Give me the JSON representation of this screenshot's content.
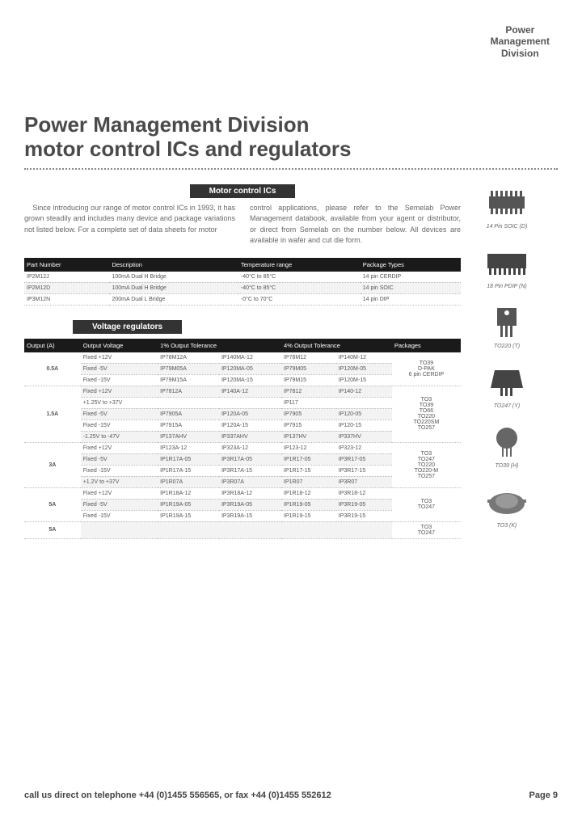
{
  "header": {
    "brand_line1": "Power",
    "brand_line2": "Management",
    "brand_line3": "Division"
  },
  "title_line1": "Power Management Division",
  "title_line2": "motor control ICs and regulators",
  "motor_section": {
    "heading": "Motor control ICs",
    "para_left": "Since introducing our range of motor control ICs in 1993, it has grown steadily and includes many device and package variations not listed below. For a complete set of data sheets for motor",
    "para_right": "control applications, please refer to the Semelab Power Management databook, available from your agent or distributor, or direct from Semelab on the number below. All devices are available in wafer and cut die form.",
    "columns": [
      "Part Number",
      "Description",
      "Temperature range",
      "Package Types"
    ],
    "rows": [
      [
        "IP2M12J",
        "100mA Dual H Bridge",
        "-40°C to 85°C",
        "14 pin CERDIP"
      ],
      [
        "IP2M12D",
        "100mA Dual H Bridge",
        "-40°C to 85°C",
        "14 pin SOIC"
      ],
      [
        "IP3M12N",
        "200mA Dual L Bridge",
        "-0°C to 70°C",
        "14 pin DIP"
      ]
    ]
  },
  "voltage_section": {
    "heading": "Voltage regulators",
    "columns": [
      "Output (A)",
      "Output Voltage",
      "1% Output Tolerance",
      "",
      "4% Output Tolerance",
      "",
      "Packages"
    ],
    "groups": [
      {
        "out": "0.5A",
        "pkg": "TO39\nD-PAK\n6 pin CERDIP",
        "rows": [
          [
            "Fixed +12V",
            "IP78M12A",
            "IP140MA-12",
            "IP78M12",
            "IP140M-12"
          ],
          [
            "Fixed -5V",
            "IP79M05A",
            "IP120MA-05",
            "IP79M05",
            "IP120M-05"
          ],
          [
            "Fixed -15V",
            "IP79M15A",
            "IP120MA-15",
            "IP79M15",
            "IP120M-15"
          ]
        ]
      },
      {
        "out": "1.5A",
        "pkg": "TO3\nTO39\nTO66\nTO220\nTO220SM\nTO257",
        "rows": [
          [
            "Fixed +12V",
            "IP7812A",
            "IP140A-12",
            "IP7812",
            "IP140-12"
          ],
          [
            "+1.25V to +37V",
            "",
            "",
            "IP117",
            ""
          ],
          [
            "Fixed -5V",
            "IP7905A",
            "IP120A-05",
            "IP7905",
            "IP120-05"
          ],
          [
            "Fixed -15V",
            "IP7915A",
            "IP120A-15",
            "IP7915",
            "IP120-15"
          ],
          [
            "-1.25V to -47V",
            "IP137AHV",
            "IP337AHV",
            "IP137HV",
            "IP337HV"
          ]
        ]
      },
      {
        "out": "3A",
        "pkg": "TO3\nTO247\nTO220\nTO220-M\nTO257",
        "rows": [
          [
            "Fixed +12V",
            "IP123A-12",
            "IP323A-12",
            "IP123-12",
            "IP323-12"
          ],
          [
            "Fixed -5V",
            "IP1R17A-05",
            "IP3R17A-05",
            "IP1R17-05",
            "IP3R17-05"
          ],
          [
            "Fixed -15V",
            "IP1R17A-15",
            "IP3R17A-15",
            "IP1R17-15",
            "IP3R17-15"
          ],
          [
            "+1.2V to +37V",
            "IP1R07A",
            "IP3R07A",
            "IP1R07",
            "IP3R07"
          ]
        ]
      },
      {
        "out": "5A",
        "pkg": "TO3\nTO247",
        "rows": [
          [
            "Fixed +12V",
            "IP1R18A-12",
            "IP3R18A-12",
            "IP1R18-12",
            "IP3R18-12"
          ],
          [
            "Fixed -5V",
            "IP1R19A-05",
            "IP3R19A-05",
            "IP1R19-05",
            "IP3R19-05"
          ],
          [
            "Fixed -15V",
            "IP1R19A-15",
            "IP3R19A-15",
            "IP1R19-15",
            "IP3R19-15"
          ]
        ]
      },
      {
        "out": "5A",
        "pkg": "TO3\nTO247",
        "rows": [
          [
            "",
            "",
            "",
            "",
            ""
          ]
        ]
      }
    ]
  },
  "packages": [
    {
      "label": "14 Pin SOIC (D)"
    },
    {
      "label": "18 Pin PDIP (N)"
    },
    {
      "label": "TO220 (T)"
    },
    {
      "label": "TO247 (Y)"
    },
    {
      "label": "TO39 (H)"
    },
    {
      "label": "TO3 (K)"
    }
  ],
  "footer": {
    "left": "call us direct on telephone +44 (0)1455 556565, or fax +44 (0)1455 552612",
    "right": "Page 9"
  },
  "colors": {
    "title": "#4a4a4a",
    "th_bg": "#1a1a1a",
    "body_text": "#666666",
    "alt_row": "#f3f3f3"
  }
}
